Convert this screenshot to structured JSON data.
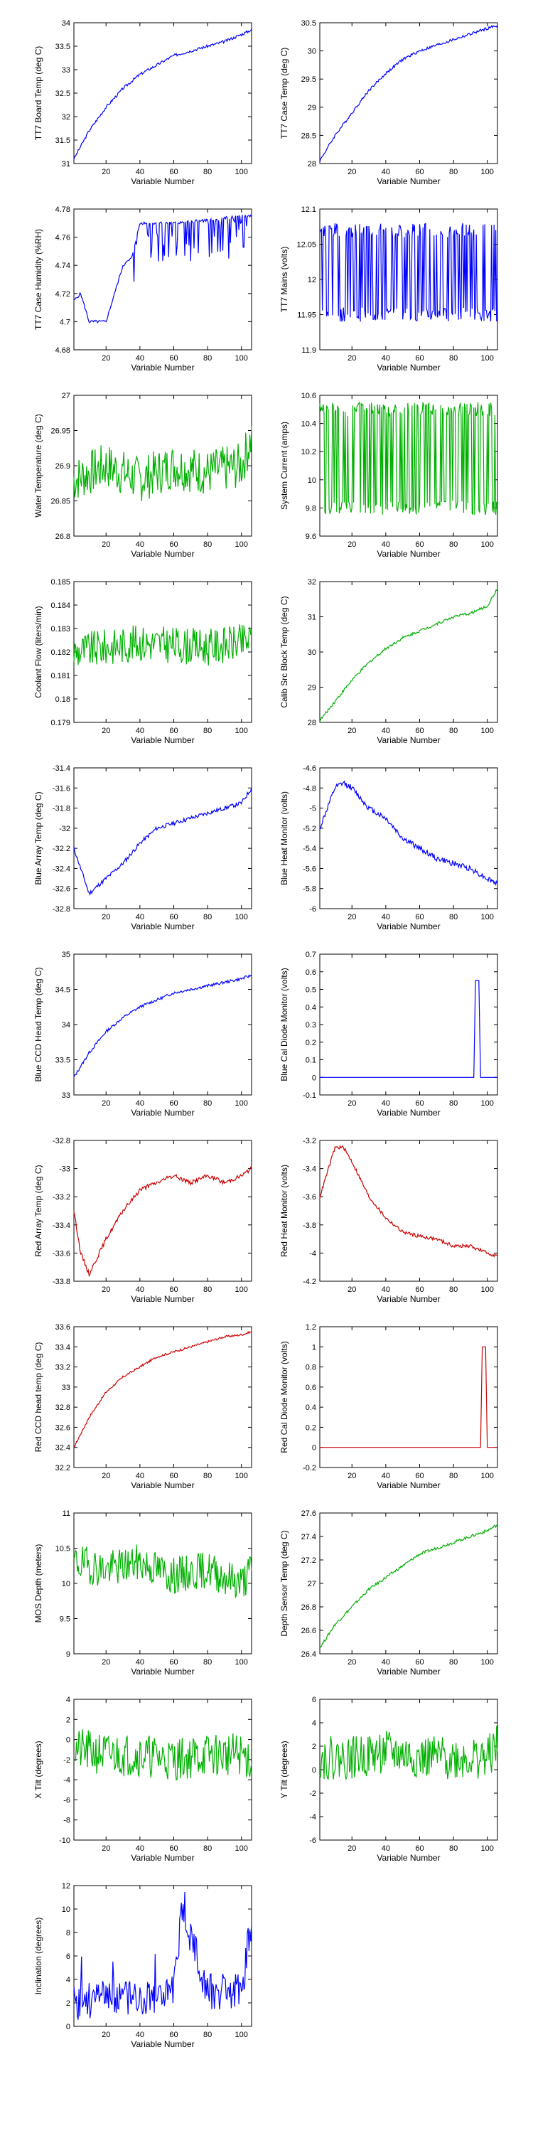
{
  "chart_data": [
    {
      "type": "line",
      "ylabel": "TT7 Board Temp (deg C)",
      "xlabel": "Variable Number",
      "xlim": [
        1,
        106
      ],
      "ylim": [
        31,
        34
      ],
      "yticks": [
        31,
        31.5,
        32,
        32.5,
        33,
        33.5,
        34
      ],
      "xticks": [
        20,
        40,
        60,
        80,
        100
      ],
      "color": "#0000ff",
      "shape": "curve",
      "start": 31.1,
      "end": 33.85,
      "noise": 0.02,
      "rate": 3,
      "x": [
        1,
        10,
        20,
        30,
        40,
        50,
        60,
        70,
        80,
        90,
        100,
        106
      ],
      "y": [
        31.1,
        31.7,
        32.2,
        32.6,
        32.9,
        33.1,
        33.3,
        33.4,
        33.5,
        33.6,
        33.75,
        33.85
      ]
    },
    {
      "type": "line",
      "ylabel": "TT7 Case Temp (deg C)",
      "xlabel": "Variable Number",
      "xlim": [
        1,
        106
      ],
      "ylim": [
        28,
        30.5
      ],
      "yticks": [
        28,
        28.5,
        29,
        29.5,
        30,
        30.5
      ],
      "xticks": [
        20,
        40,
        60,
        80,
        100
      ],
      "color": "#0000ff",
      "shape": "curve",
      "start": 28.05,
      "end": 30.45,
      "noise": 0.02,
      "rate": 2.5,
      "x": [
        1,
        10,
        20,
        30,
        40,
        50,
        60,
        70,
        80,
        90,
        100,
        106
      ],
      "y": [
        28.05,
        28.5,
        28.9,
        29.3,
        29.6,
        29.85,
        30.0,
        30.1,
        30.2,
        30.3,
        30.4,
        30.45
      ]
    },
    {
      "type": "line",
      "ylabel": "TT7 Case Humidity (%RH)",
      "xlabel": "Variable Number",
      "xlim": [
        1,
        106
      ],
      "ylim": [
        4.68,
        4.78
      ],
      "yticks": [
        4.68,
        4.7,
        4.72,
        4.74,
        4.76,
        4.78
      ],
      "xticks": [
        20,
        40,
        60,
        80,
        100
      ],
      "color": "#0000ff",
      "shape": "humidity",
      "start": 4.72,
      "end": 4.775,
      "noise": 0.02,
      "rate": 1,
      "x": [
        1,
        5,
        10,
        20,
        30,
        35,
        40,
        60,
        80,
        100,
        106
      ],
      "y": [
        4.715,
        4.72,
        4.7,
        4.7,
        4.74,
        4.745,
        4.77,
        4.77,
        4.772,
        4.775,
        4.775
      ]
    },
    {
      "type": "line",
      "ylabel": "TT7 Mains  (volts)",
      "xlabel": "Variable Number",
      "xlim": [
        1,
        106
      ],
      "ylim": [
        11.9,
        12.1
      ],
      "yticks": [
        11.9,
        11.95,
        12,
        12.05,
        12.1
      ],
      "xticks": [
        20,
        40,
        60,
        80,
        100
      ],
      "color": "#0000ff",
      "shape": "switch",
      "start": 11.98,
      "end": 12.06,
      "noise": 0.08,
      "rate": 1,
      "x": [
        1,
        20,
        40,
        60,
        80,
        100,
        106
      ],
      "y": [
        12.05,
        11.97,
        12.06,
        12.07,
        12.0,
        11.95,
        11.98
      ]
    },
    {
      "type": "line",
      "ylabel": "Water Temperature (deg C)",
      "xlabel": "Variable Number",
      "xlim": [
        1,
        106
      ],
      "ylim": [
        26.8,
        27
      ],
      "yticks": [
        26.8,
        26.85,
        26.9,
        26.95,
        27
      ],
      "xticks": [
        20,
        40,
        60,
        80,
        100
      ],
      "color": "#00b000",
      "shape": "noise",
      "start": 26.89,
      "end": 26.9,
      "noise": 0.15,
      "rate": 1,
      "x": [
        1,
        20,
        40,
        60,
        80,
        100,
        106
      ],
      "y": [
        26.88,
        26.9,
        26.88,
        26.9,
        26.89,
        26.9,
        26.94
      ]
    },
    {
      "type": "line",
      "ylabel": "System Current (amps)",
      "xlabel": "Variable Number",
      "xlim": [
        1,
        106
      ],
      "ylim": [
        9.6,
        10.6
      ],
      "yticks": [
        9.6,
        9.8,
        10,
        10.2,
        10.4,
        10.6
      ],
      "xticks": [
        20,
        40,
        60,
        80,
        100
      ],
      "color": "#00b000",
      "shape": "switch",
      "start": 9.8,
      "end": 10.35,
      "noise": 0.06,
      "rate": 1,
      "x": [
        1,
        20,
        40,
        60,
        80,
        100,
        106
      ],
      "y": [
        10.2,
        9.8,
        10.3,
        10.2,
        10.35,
        10.4,
        10.5
      ]
    },
    {
      "type": "line",
      "ylabel": "Coolant Flow (liters/min)",
      "xlabel": "Variable Number",
      "xlim": [
        1,
        106
      ],
      "ylim": [
        0.179,
        0.185
      ],
      "yticks": [
        0.179,
        0.18,
        0.181,
        0.182,
        0.183,
        0.184,
        0.185
      ],
      "xticks": [
        20,
        40,
        60,
        80,
        100
      ],
      "color": "#00b000",
      "shape": "noise",
      "start": 0.1822,
      "end": 0.1824,
      "noise": 0.12,
      "rate": 1,
      "x": [
        1,
        20,
        40,
        60,
        80,
        100,
        106
      ],
      "y": [
        0.182,
        0.1822,
        0.1824,
        0.1823,
        0.1822,
        0.1824,
        0.1825
      ]
    },
    {
      "type": "line",
      "ylabel": "Calib Src Block Temp (deg C)",
      "xlabel": "Variable Number",
      "xlim": [
        1,
        106
      ],
      "ylim": [
        28,
        32
      ],
      "yticks": [
        28,
        29,
        30,
        31,
        32
      ],
      "xticks": [
        20,
        40,
        60,
        80,
        100
      ],
      "color": "#00b000",
      "shape": "curve",
      "start": 28.05,
      "end": 31.4,
      "noise": 0.02,
      "rate": 1.8,
      "x": [
        1,
        10,
        20,
        30,
        40,
        50,
        60,
        70,
        80,
        90,
        100,
        106
      ],
      "y": [
        28.05,
        28.6,
        29.2,
        29.7,
        30.1,
        30.4,
        30.6,
        30.8,
        31.0,
        31.1,
        31.3,
        31.8
      ]
    },
    {
      "type": "line",
      "ylabel": "Blue Array Temp (deg C)",
      "xlabel": "Variable Number",
      "xlim": [
        1,
        106
      ],
      "ylim": [
        -32.8,
        -31.4
      ],
      "yticks": [
        -32.8,
        -32.6,
        -32.4,
        -32.2,
        -32,
        -31.8,
        -31.6,
        -31.4
      ],
      "xticks": [
        20,
        40,
        60,
        80,
        100
      ],
      "color": "#0000ff",
      "shape": "dipcurve",
      "start": -32.65,
      "end": -31.6,
      "noise": 0.03,
      "rate": 2,
      "x": [
        1,
        5,
        10,
        20,
        30,
        40,
        50,
        60,
        70,
        80,
        90,
        100,
        106
      ],
      "y": [
        -32.2,
        -32.4,
        -32.65,
        -32.5,
        -32.35,
        -32.15,
        -32.0,
        -31.95,
        -31.9,
        -31.85,
        -31.8,
        -31.75,
        -31.6
      ]
    },
    {
      "type": "line",
      "ylabel": "Blue Heat Monitor (volts)",
      "xlabel": "Variable Number",
      "xlim": [
        1,
        106
      ],
      "ylim": [
        -6,
        -4.6
      ],
      "yticks": [
        -6,
        -5.8,
        -5.6,
        -5.4,
        -5.2,
        -5,
        -4.8,
        -4.6
      ],
      "xticks": [
        20,
        40,
        60,
        80,
        100
      ],
      "color": "#0000ff",
      "shape": "humpdecay",
      "start": -5.2,
      "end": -5.75,
      "noise": 0.04,
      "rate": 1,
      "x": [
        1,
        10,
        15,
        20,
        30,
        40,
        50,
        60,
        70,
        80,
        90,
        100,
        106
      ],
      "y": [
        -5.2,
        -4.8,
        -4.75,
        -4.8,
        -5.0,
        -5.1,
        -5.3,
        -5.4,
        -5.5,
        -5.55,
        -5.6,
        -5.7,
        -5.75
      ]
    },
    {
      "type": "line",
      "ylabel": "Blue CCD Head Temp (deg C)",
      "xlabel": "Variable Number",
      "xlim": [
        1,
        106
      ],
      "ylim": [
        33,
        35
      ],
      "yticks": [
        33,
        33.5,
        34,
        34.5,
        35
      ],
      "xticks": [
        20,
        40,
        60,
        80,
        100
      ],
      "color": "#0000ff",
      "shape": "curve",
      "start": 33.25,
      "end": 34.7,
      "noise": 0.02,
      "rate": 2.2,
      "x": [
        1,
        10,
        20,
        30,
        40,
        50,
        60,
        70,
        80,
        90,
        100,
        106
      ],
      "y": [
        33.25,
        33.6,
        33.9,
        34.1,
        34.25,
        34.35,
        34.45,
        34.5,
        34.55,
        34.6,
        34.65,
        34.7
      ]
    },
    {
      "type": "line",
      "ylabel": "Blue Cal Diode Monitor (volts)",
      "xlabel": "Variable Number",
      "xlim": [
        1,
        106
      ],
      "ylim": [
        -0.1,
        0.7
      ],
      "yticks": [
        -0.1,
        0,
        0.1,
        0.2,
        0.3,
        0.4,
        0.5,
        0.6,
        0.7
      ],
      "xticks": [
        20,
        40,
        60,
        80,
        100
      ],
      "color": "#0000ff",
      "shape": "spike",
      "start": 0,
      "end": 0.55,
      "noise": 0,
      "rate": 93,
      "x": [
        1,
        92,
        93,
        95,
        96,
        106
      ],
      "y": [
        0,
        0,
        0.55,
        0.55,
        0,
        0
      ]
    },
    {
      "type": "line",
      "ylabel": "Red Array Temp (deg C)",
      "xlabel": "Variable Number",
      "xlim": [
        1,
        106
      ],
      "ylim": [
        -33.8,
        -32.8
      ],
      "yticks": [
        -33.8,
        -33.6,
        -33.4,
        -33.2,
        -33,
        -32.8
      ],
      "xticks": [
        20,
        40,
        60,
        80,
        100
      ],
      "color": "#cc0000",
      "shape": "dipcurve",
      "start": -33.75,
      "end": -33.0,
      "noise": 0.03,
      "rate": 2,
      "x": [
        1,
        5,
        10,
        20,
        30,
        40,
        50,
        60,
        70,
        80,
        90,
        100,
        106
      ],
      "y": [
        -33.3,
        -33.6,
        -33.75,
        -33.5,
        -33.3,
        -33.15,
        -33.1,
        -33.05,
        -33.1,
        -33.05,
        -33.1,
        -33.05,
        -33.0
      ]
    },
    {
      "type": "line",
      "ylabel": "Red Heat Monitor (volts)",
      "xlabel": "Variable Number",
      "xlim": [
        1,
        106
      ],
      "ylim": [
        -4.2,
        -3.2
      ],
      "yticks": [
        -4.2,
        -4,
        -3.8,
        -3.6,
        -3.4,
        -3.2
      ],
      "xticks": [
        20,
        40,
        60,
        80,
        100
      ],
      "color": "#cc0000",
      "shape": "humpdecay",
      "start": -3.65,
      "end": -4.0,
      "noise": 0.025,
      "rate": 1,
      "x": [
        1,
        10,
        15,
        20,
        30,
        40,
        50,
        60,
        70,
        80,
        90,
        100,
        106
      ],
      "y": [
        -3.6,
        -3.25,
        -3.25,
        -3.35,
        -3.6,
        -3.75,
        -3.85,
        -3.88,
        -3.9,
        -3.95,
        -3.95,
        -4.0,
        -4.02
      ]
    },
    {
      "type": "line",
      "ylabel": "Red CCD head temp (deg C)",
      "xlabel": "Variable Number",
      "xlim": [
        1,
        106
      ],
      "ylim": [
        32.2,
        33.6
      ],
      "yticks": [
        32.2,
        32.4,
        32.6,
        32.8,
        33,
        33.2,
        33.4,
        33.6
      ],
      "xticks": [
        20,
        40,
        60,
        80,
        100
      ],
      "color": "#cc0000",
      "shape": "curve",
      "start": 32.4,
      "end": 33.55,
      "noise": 0.015,
      "rate": 2.2,
      "x": [
        1,
        10,
        20,
        30,
        40,
        50,
        60,
        70,
        80,
        90,
        100,
        106
      ],
      "y": [
        32.4,
        32.7,
        32.95,
        33.1,
        33.2,
        33.3,
        33.35,
        33.4,
        33.45,
        33.5,
        33.52,
        33.55
      ]
    },
    {
      "type": "line",
      "ylabel": "Red Cal Diode Monitor (volts)",
      "xlabel": "Variable Number",
      "xlim": [
        1,
        106
      ],
      "ylim": [
        -0.2,
        1.2
      ],
      "yticks": [
        -0.2,
        0,
        0.2,
        0.4,
        0.6,
        0.8,
        1,
        1.2
      ],
      "xticks": [
        20,
        40,
        60,
        80,
        100
      ],
      "color": "#cc0000",
      "shape": "spike",
      "start": 0,
      "end": 1.0,
      "noise": 0,
      "rate": 97,
      "x": [
        1,
        96,
        97,
        99,
        100,
        106
      ],
      "y": [
        0,
        0,
        1.0,
        1.0,
        0,
        0
      ]
    },
    {
      "type": "line",
      "ylabel": "MOS Depth  (meters)",
      "xlabel": "Variable Number",
      "xlim": [
        1,
        106
      ],
      "ylim": [
        9,
        11
      ],
      "yticks": [
        9,
        9.5,
        10,
        10.5,
        11
      ],
      "xticks": [
        20,
        40,
        60,
        80,
        100
      ],
      "color": "#00b000",
      "shape": "noise",
      "start": 10.3,
      "end": 10.1,
      "noise": 0.12,
      "rate": 1,
      "x": [
        1,
        20,
        40,
        60,
        80,
        100,
        106
      ],
      "y": [
        10.3,
        10.2,
        10.3,
        10.1,
        10.2,
        10.0,
        10.2
      ]
    },
    {
      "type": "line",
      "ylabel": "Depth Sensor Temp (deg C)",
      "xlabel": "Variable Number",
      "xlim": [
        1,
        106
      ],
      "ylim": [
        26.4,
        27.6
      ],
      "yticks": [
        26.4,
        26.6,
        26.8,
        27,
        27.2,
        27.4,
        27.6
      ],
      "xticks": [
        20,
        40,
        60,
        80,
        100
      ],
      "color": "#00b000",
      "shape": "curve",
      "start": 26.45,
      "end": 27.5,
      "noise": 0.02,
      "rate": 1.8,
      "x": [
        1,
        10,
        20,
        30,
        40,
        50,
        60,
        70,
        80,
        90,
        100,
        106
      ],
      "y": [
        26.45,
        26.65,
        26.8,
        26.95,
        27.05,
        27.15,
        27.25,
        27.3,
        27.35,
        27.4,
        27.45,
        27.5
      ]
    },
    {
      "type": "line",
      "ylabel": "X Tilt  (degrees)",
      "xlabel": "Variable Number",
      "xlim": [
        1,
        106
      ],
      "ylim": [
        -10,
        4
      ],
      "yticks": [
        -10,
        -8,
        -6,
        -4,
        -2,
        0,
        2,
        4
      ],
      "xticks": [
        20,
        40,
        60,
        80,
        100
      ],
      "color": "#00b000",
      "shape": "noise",
      "start": -1.5,
      "end": -1.5,
      "noise": 0.14,
      "rate": 1,
      "x": [
        1,
        20,
        40,
        60,
        80,
        100,
        106
      ],
      "y": [
        -1,
        -1.5,
        -1.5,
        -2,
        -1.5,
        -1.5,
        -2
      ]
    },
    {
      "type": "line",
      "ylabel": "Y Tilt  (degrees)",
      "xlabel": "Variable Number",
      "xlim": [
        1,
        106
      ],
      "ylim": [
        -6,
        6
      ],
      "yticks": [
        -6,
        -4,
        -2,
        0,
        2,
        4,
        6
      ],
      "xticks": [
        20,
        40,
        60,
        80,
        100
      ],
      "color": "#00b000",
      "shape": "noise",
      "start": 1,
      "end": 1,
      "noise": 0.14,
      "rate": 1,
      "x": [
        1,
        20,
        40,
        60,
        80,
        100,
        106
      ],
      "y": [
        1,
        1,
        1.5,
        1,
        1,
        1,
        2
      ]
    },
    {
      "type": "line",
      "ylabel": "Inclination  (degrees)",
      "xlabel": "Variable Number",
      "xlim": [
        1,
        106
      ],
      "ylim": [
        0,
        12
      ],
      "yticks": [
        0,
        2,
        4,
        6,
        8,
        10,
        12
      ],
      "xticks": [
        20,
        40,
        60,
        80,
        100
      ],
      "color": "#0000ff",
      "shape": "spiky",
      "start": 2.5,
      "end": 3,
      "noise": 0.12,
      "rate": 1,
      "x": [
        1,
        20,
        40,
        60,
        65,
        80,
        100,
        106
      ],
      "y": [
        2,
        2.5,
        2.5,
        3,
        10,
        3,
        3,
        9
      ]
    }
  ]
}
